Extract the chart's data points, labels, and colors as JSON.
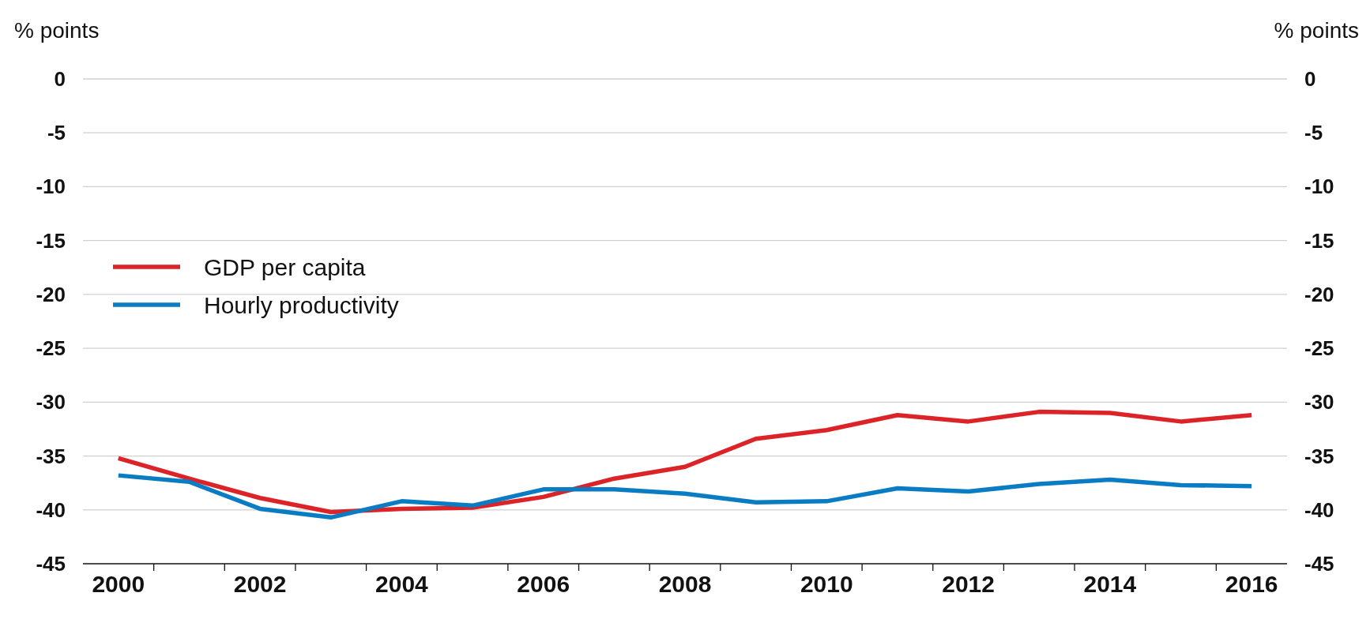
{
  "chart_data": {
    "type": "line",
    "ylabel": "% points",
    "y2label": "% points",
    "categories": [
      "2000",
      null,
      "2002",
      null,
      "2004",
      null,
      "2006",
      null,
      "2008",
      null,
      "2010",
      null,
      "2012",
      null,
      "2014",
      null,
      "2016"
    ],
    "series": [
      {
        "name": "GDP per capita",
        "color": "#dc2328",
        "values": [
          -35.2,
          -37.1,
          -38.9,
          -40.2,
          -39.9,
          -39.8,
          -38.8,
          -37.1,
          -36.0,
          -33.4,
          -32.6,
          -31.2,
          -31.8,
          -30.9,
          -31.0,
          -31.8,
          -31.2
        ]
      },
      {
        "name": "Hourly productivity",
        "color": "#0a7cc4",
        "values": [
          -36.8,
          -37.4,
          -39.9,
          -40.7,
          -39.2,
          -39.6,
          -38.1,
          -38.1,
          -38.5,
          -39.3,
          -39.2,
          -38.0,
          -38.3,
          -37.6,
          -37.2,
          -37.7,
          -37.8
        ]
      }
    ],
    "ylim": [
      -45,
      0
    ],
    "yticks": [
      0,
      -5,
      -10,
      -15,
      -20,
      -25,
      -30,
      -35,
      -40,
      -45
    ],
    "y2lim": [
      -45,
      0
    ],
    "y2ticks": [
      0,
      -5,
      -10,
      -15,
      -20,
      -25,
      -30,
      -35,
      -40,
      -45
    ],
    "grid": "y",
    "legend": "left",
    "marker": "none",
    "line_style": "solid"
  }
}
